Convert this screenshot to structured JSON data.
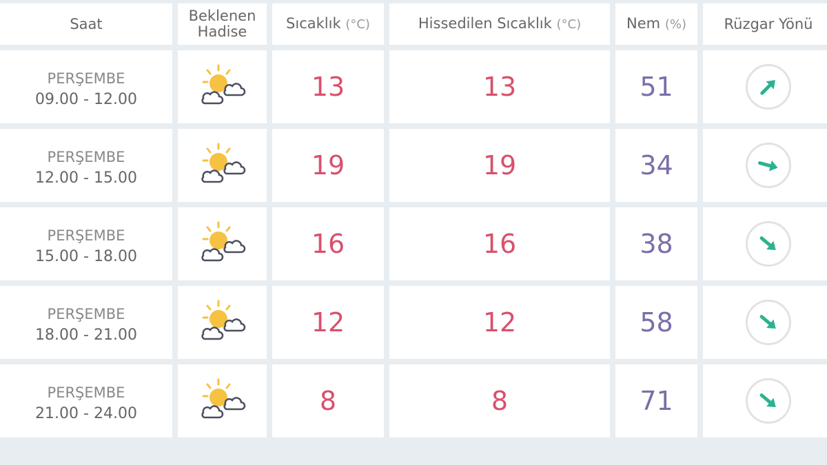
{
  "headers": {
    "time": "Saat",
    "event_line1": "Beklenen",
    "event_line2": "Hadise",
    "temp": "Sıcaklık",
    "temp_unit": "(°C)",
    "feels": "Hissedilen Sıcaklık",
    "feels_unit": "(°C)",
    "humidity": "Nem",
    "humidity_unit": "(%)",
    "wind": "Rüzgar Yönü"
  },
  "colors": {
    "temp": "#d9506c",
    "humidity": "#7b6ea9",
    "arrow": "#2bb28f",
    "sun": "#f5c242",
    "cloud": "#4a4f5e"
  },
  "rows": [
    {
      "day": "PERŞEMBE",
      "time": "09.00 - 12.00",
      "icon": "partly-cloudy-icon",
      "temp": "13",
      "feels": "13",
      "humidity": "51",
      "wind_arrow_deg": -45
    },
    {
      "day": "PERŞEMBE",
      "time": "12.00 - 15.00",
      "icon": "partly-cloudy-icon",
      "temp": "19",
      "feels": "19",
      "humidity": "34",
      "wind_arrow_deg": 15
    },
    {
      "day": "PERŞEMBE",
      "time": "15.00 - 18.00",
      "icon": "partly-cloudy-icon",
      "temp": "16",
      "feels": "16",
      "humidity": "38",
      "wind_arrow_deg": 40
    },
    {
      "day": "PERŞEMBE",
      "time": "18.00 - 21.00",
      "icon": "partly-cloudy-icon",
      "temp": "12",
      "feels": "12",
      "humidity": "58",
      "wind_arrow_deg": 40
    },
    {
      "day": "PERŞEMBE",
      "time": "21.00 - 24.00",
      "icon": "partly-cloudy-icon",
      "temp": "8",
      "feels": "8",
      "humidity": "71",
      "wind_arrow_deg": 40
    }
  ]
}
